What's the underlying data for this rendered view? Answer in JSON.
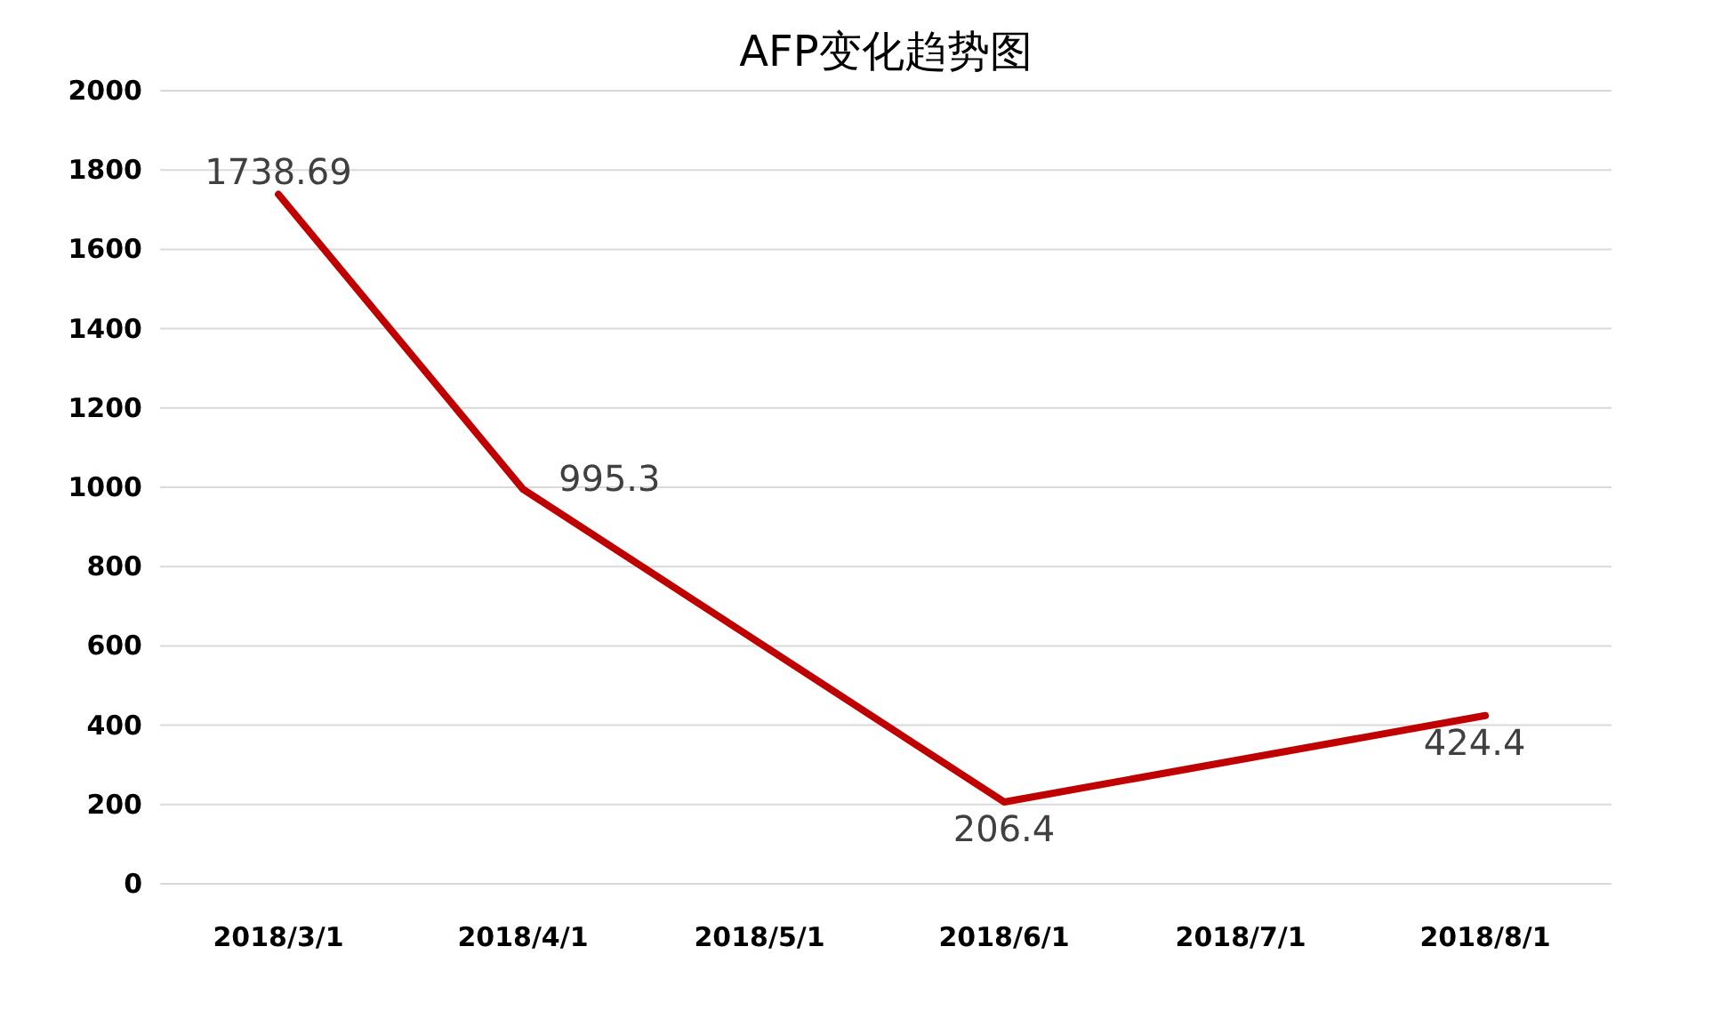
{
  "chart_data": {
    "type": "line",
    "title": "AFP变化趋势图",
    "x": [
      "2018-03-01",
      "2018-04-01",
      "2018-06-01",
      "2018-08-01"
    ],
    "series": [
      {
        "color": "#c00000",
        "values": [
          1738.69,
          995.3,
          206.4,
          424.4
        ]
      }
    ],
    "xlim": [
      "2018-02-14",
      "2018-08-17"
    ],
    "xticks": [
      {
        "value": "2018-03-01",
        "label": "2018/3/1"
      },
      {
        "value": "2018-04-01",
        "label": "2018/4/1"
      },
      {
        "value": "2018-05-01",
        "label": "2018/5/1"
      },
      {
        "value": "2018-06-01",
        "label": "2018/6/1"
      },
      {
        "value": "2018-07-01",
        "label": "2018/7/1"
      },
      {
        "value": "2018-08-01",
        "label": "2018/8/1"
      }
    ],
    "ylim": [
      0,
      2000
    ],
    "yticks": [
      0,
      200,
      400,
      600,
      800,
      1000,
      1200,
      1400,
      1600,
      1800,
      2000
    ],
    "grid": "y",
    "data_labels": true,
    "marker": "none",
    "line_style": "solid"
  }
}
